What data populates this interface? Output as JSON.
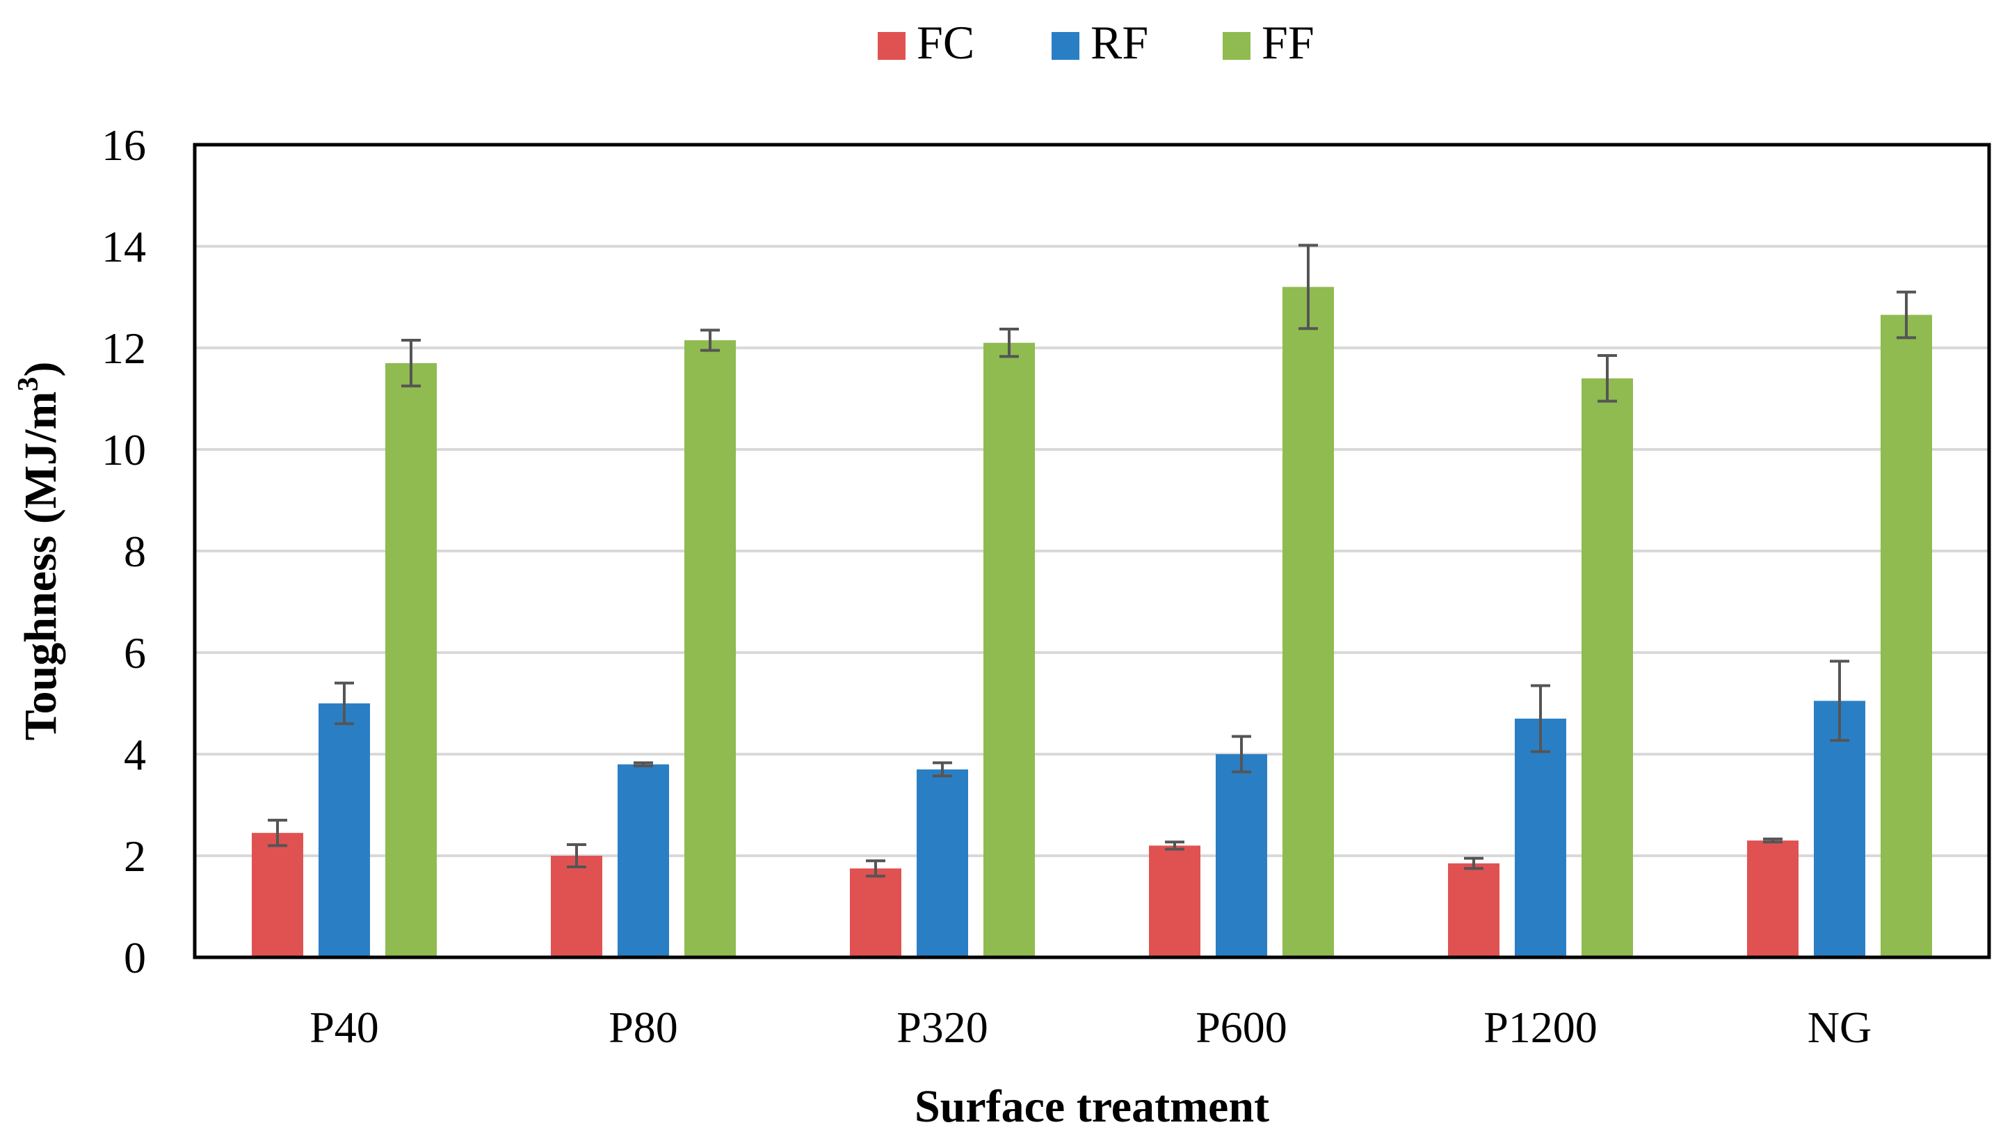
{
  "chart_data": {
    "type": "bar",
    "title": "",
    "xlabel": "Surface treatment",
    "ylabel": "Toughness (MJ/m",
    "ylabel_superscript": "3",
    "ylabel_suffix": ")",
    "categories": [
      "P40",
      "P80",
      "P320",
      "P600",
      "P1200",
      "NG"
    ],
    "ylim": [
      0,
      16
    ],
    "yticks": [
      0,
      2,
      4,
      6,
      8,
      10,
      12,
      14,
      16
    ],
    "grid": true,
    "legend_position": "top-center",
    "series": [
      {
        "name": "FC",
        "color": "#e05252",
        "values": [
          2.45,
          2.0,
          1.75,
          2.2,
          1.85,
          2.3
        ],
        "errors": [
          0.25,
          0.22,
          0.15,
          0.07,
          0.1,
          0.03
        ]
      },
      {
        "name": "RF",
        "color": "#2a7fc4",
        "values": [
          5.0,
          3.8,
          3.7,
          4.0,
          4.7,
          5.05
        ],
        "errors": [
          0.4,
          0.03,
          0.13,
          0.35,
          0.65,
          0.78
        ]
      },
      {
        "name": "FF",
        "color": "#8fbb50",
        "values": [
          11.7,
          12.15,
          12.1,
          13.2,
          11.4,
          12.65
        ],
        "errors": [
          0.45,
          0.2,
          0.27,
          0.82,
          0.45,
          0.45
        ]
      }
    ]
  }
}
